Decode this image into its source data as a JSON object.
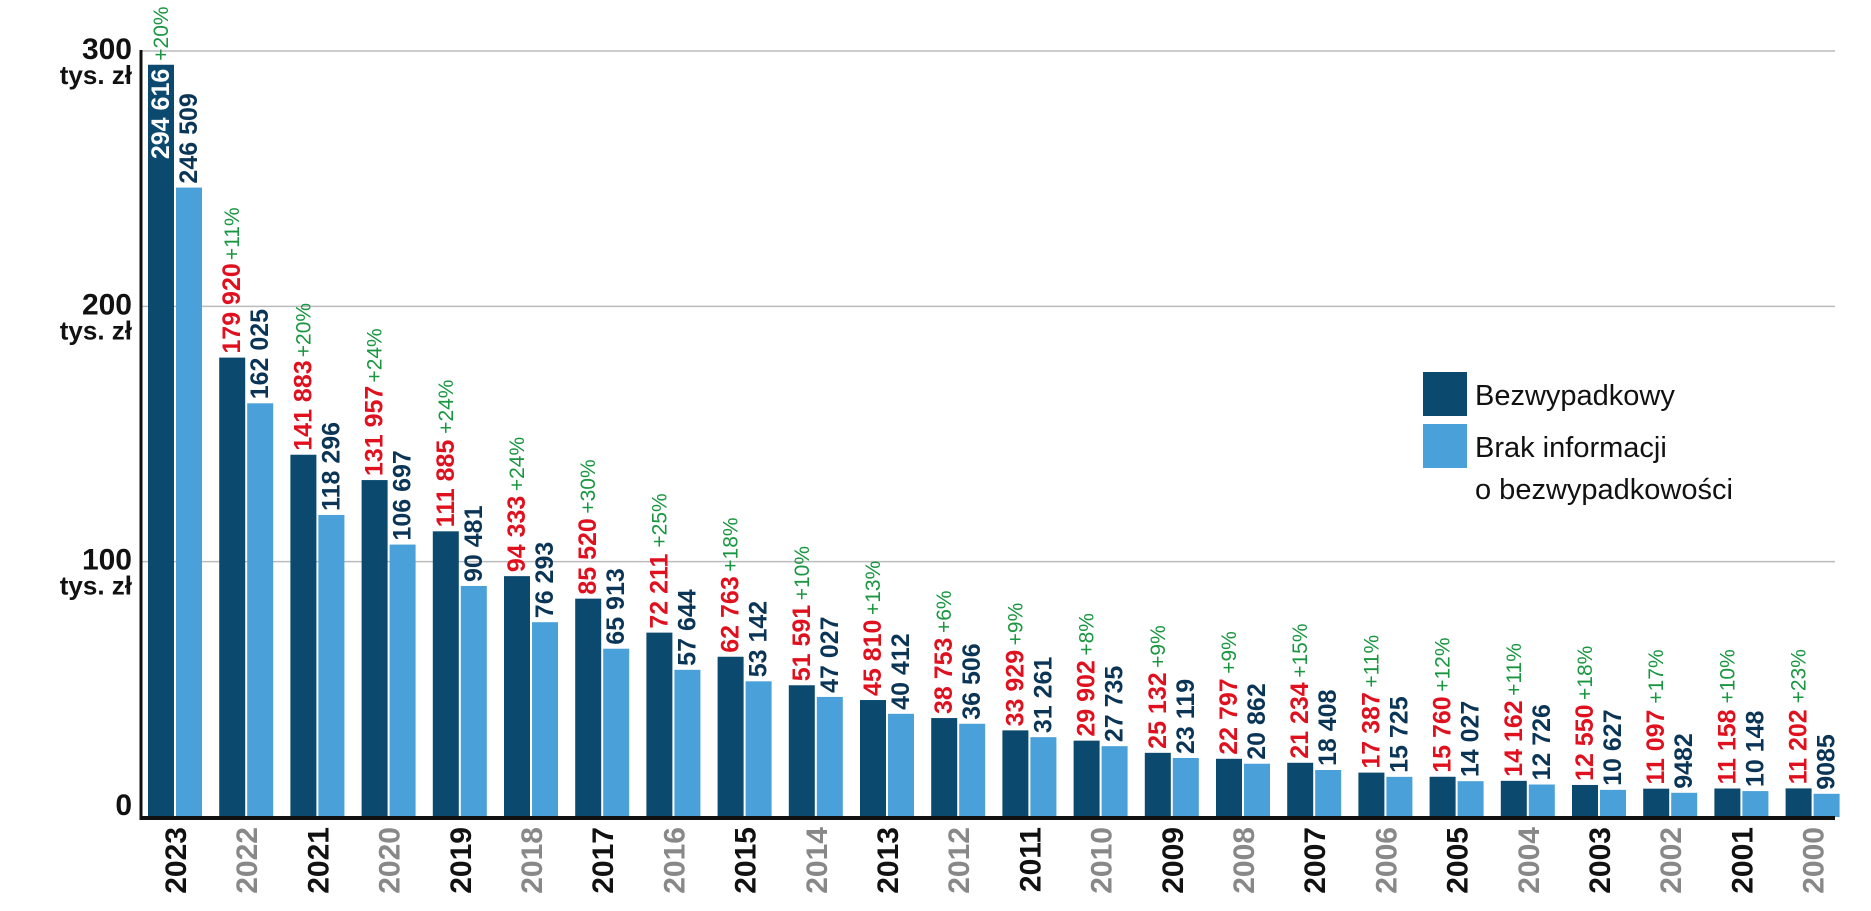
{
  "colors": {
    "series1": "#0b4a6e",
    "series2": "#4aa0d8",
    "red_label": "#e0101e",
    "dark_label": "#0b3556",
    "pct_label": "#1a9641",
    "axis": "#111111",
    "grid": "#bbbbbb",
    "year_even": "#111111",
    "year_odd": "#888888"
  },
  "chart_data": {
    "type": "bar",
    "ylim": [
      0,
      300000
    ],
    "y_ticks": [
      {
        "value": 0,
        "label": "0",
        "unit": ""
      },
      {
        "value": 100000,
        "label": "100",
        "unit": "tys. zł"
      },
      {
        "value": 200000,
        "label": "200",
        "unit": "tys. zł"
      },
      {
        "value": 300000,
        "label": "300",
        "unit": "tys. zł"
      }
    ],
    "grid": true,
    "legend_position": "right",
    "categories": [
      "2023",
      "2022",
      "2021",
      "2020",
      "2019",
      "2018",
      "2017",
      "2016",
      "2015",
      "2014",
      "2013",
      "2012",
      "2011",
      "2010",
      "2009",
      "2008",
      "2007",
      "2006",
      "2005",
      "2004",
      "2003",
      "2002",
      "2001",
      "2000"
    ],
    "series": [
      {
        "name": "Bezwypadkowy",
        "values": [
          294616,
          179920,
          141883,
          131957,
          111885,
          94333,
          85520,
          72211,
          62763,
          51591,
          45810,
          38753,
          33929,
          29902,
          25132,
          22797,
          21234,
          17387,
          15760,
          14162,
          12550,
          11097,
          11158,
          11202
        ],
        "labels": [
          "294 616",
          "179 920",
          "141 883",
          "131 957",
          "111 885",
          "94 333",
          "85 520",
          "72 211",
          "62 763",
          "51 591",
          "45 810",
          "38 753",
          "33 929",
          "29 902",
          "25 132",
          "22 797",
          "21 234",
          "17 387",
          "15 760",
          "14 162",
          "12 550",
          "11 097",
          "11 158",
          "11 202"
        ]
      },
      {
        "name": "Brak informacji o bezwypadkowości",
        "values": [
          246509,
          162025,
          118296,
          106697,
          90481,
          76293,
          65913,
          57644,
          53142,
          47027,
          40412,
          36506,
          31261,
          27735,
          23119,
          20862,
          18408,
          15725,
          14027,
          12726,
          10627,
          9482,
          10148,
          9085
        ],
        "labels": [
          "246 509",
          "162 025",
          "118 296",
          "106 697",
          "90 481",
          "76 293",
          "65 913",
          "57 644",
          "53 142",
          "47 027",
          "40 412",
          "36 506",
          "31 261",
          "27 735",
          "23 119",
          "20 862",
          "18 408",
          "15 725",
          "14 027",
          "12 726",
          "10 627",
          "9482",
          "10 148",
          "9085"
        ]
      }
    ],
    "differences": [
      "+20%",
      "+11%",
      "+20%",
      "+24%",
      "+24%",
      "+24%",
      "+30%",
      "+25%",
      "+18%",
      "+10%",
      "+13%",
      "+6%",
      "+9%",
      "+8%",
      "+9%",
      "+9%",
      "+15%",
      "+11%",
      "+12%",
      "+11%",
      "+18%",
      "+17%",
      "+10%",
      "+23%"
    ]
  },
  "legend": {
    "items": [
      {
        "color_key": "series1",
        "lines": [
          "Bezwypadkowy"
        ]
      },
      {
        "color_key": "series2",
        "lines": [
          "Brak informacji",
          "o bezwypadkowości"
        ]
      }
    ]
  }
}
